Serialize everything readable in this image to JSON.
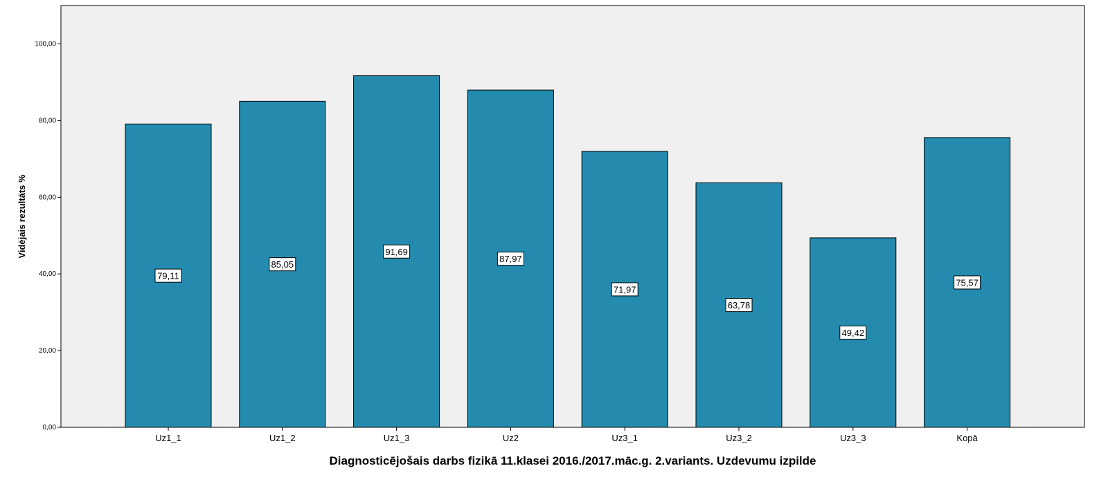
{
  "chart_data": {
    "type": "bar",
    "categories": [
      "Uz1_1",
      "Uz1_2",
      "Uz1_3",
      "Uz2",
      "Uz3_1",
      "Uz3_2",
      "Uz3_3",
      "Kopā"
    ],
    "values": [
      79.11,
      85.05,
      91.69,
      87.97,
      71.97,
      63.78,
      49.42,
      75.57
    ],
    "data_labels": [
      "79,11",
      "85,05",
      "91,69",
      "87,97",
      "71,97",
      "63,78",
      "49,42",
      "75,57"
    ],
    "title": "",
    "xlabel": "Diagnosticējošais darbs fizikā 11.klasei 2016./2017.māc.g. 2.variants. Uzdevumu izpilde",
    "ylabel": "Vidējais rezultāts %",
    "ylim": [
      0,
      110
    ],
    "yticks": [
      0,
      20,
      40,
      60,
      80,
      100
    ],
    "ytick_labels": [
      "0,00",
      "20,00",
      "40,00",
      "60,00",
      "80,00",
      "100,00"
    ],
    "grid": false,
    "legend": "none",
    "colors": {
      "bar": "#248bae",
      "plot_background": "#f0f0f0",
      "label_background": "#ffffff"
    }
  }
}
